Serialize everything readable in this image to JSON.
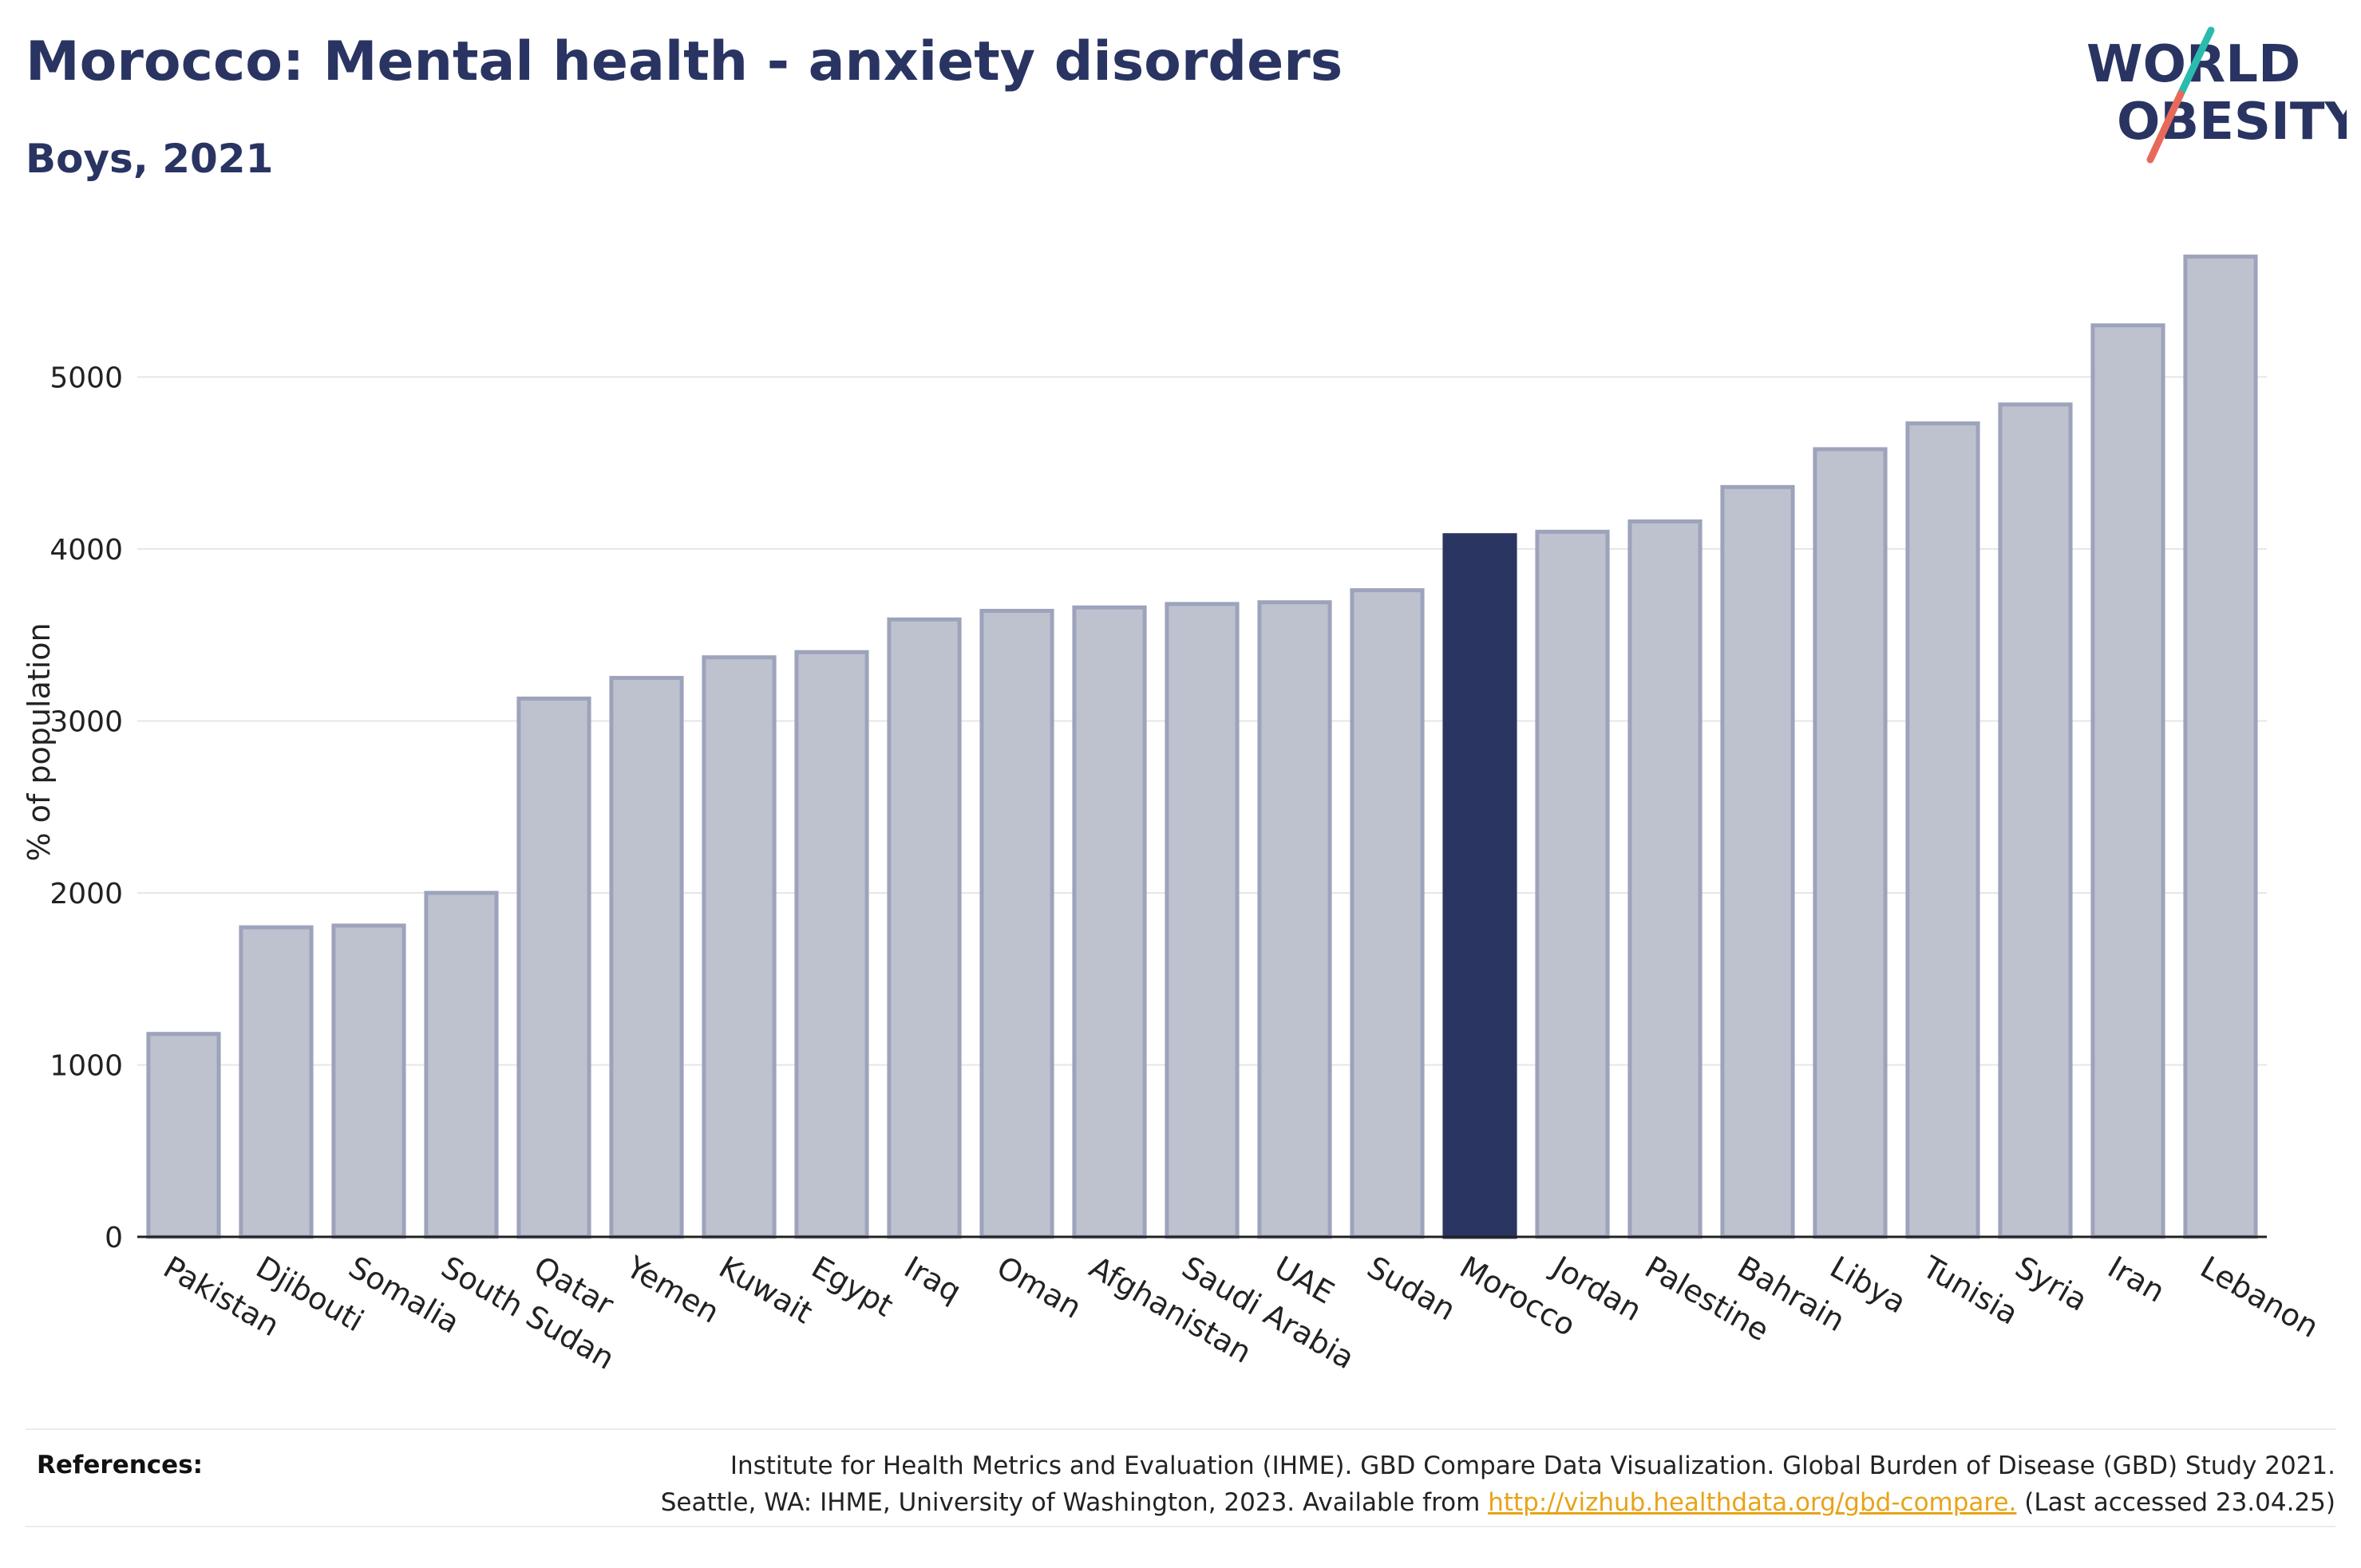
{
  "header": {
    "title": "Morocco: Mental health - anxiety disorders",
    "subtitle": "Boys, 2021",
    "logo_line1": "WORLD",
    "logo_line2": "OBESITY"
  },
  "colors": {
    "navy": "#293462",
    "bar_fill": "#bec2cf",
    "bar_stroke": "#9da3bb",
    "highlight": "#2a3561",
    "grid": "#e6e6e6",
    "logo_teal": "#2bbbad",
    "logo_coral": "#e8695a",
    "link": "#e8a317"
  },
  "chart_data": {
    "type": "bar",
    "title": "Morocco: Mental health - anxiety disorders",
    "subtitle": "Boys, 2021",
    "xlabel": "",
    "ylabel": "% of population",
    "ylim": [
      0,
      5800
    ],
    "yticks": [
      0,
      1000,
      2000,
      3000,
      4000,
      5000
    ],
    "grid": true,
    "highlight": "Morocco",
    "categories": [
      "Pakistan",
      "Djibouti",
      "Somalia",
      "South Sudan",
      "Qatar",
      "Yemen",
      "Kuwait",
      "Egypt",
      "Iraq",
      "Oman",
      "Afghanistan",
      "Saudi Arabia",
      "UAE",
      "Sudan",
      "Morocco",
      "Jordan",
      "Palestine",
      "Bahrain",
      "Libya",
      "Tunisia",
      "Syria",
      "Iran",
      "Lebanon"
    ],
    "values": [
      1180,
      1800,
      1810,
      2000,
      3130,
      3250,
      3370,
      3400,
      3590,
      3640,
      3660,
      3680,
      3690,
      3760,
      4080,
      4100,
      4160,
      4360,
      4580,
      4730,
      4840,
      5300,
      5700
    ]
  },
  "references": {
    "label": "References:",
    "line1": "Institute for Health Metrics and Evaluation (IHME). GBD Compare Data Visualization. Global Burden of Disease (GBD) Study 2021.",
    "line2_prefix": "Seattle, WA: IHME, University of Washington, 2023. Available from ",
    "link_text": "http://vizhub.healthdata.org/gbd-compare.",
    "line2_suffix": " (Last accessed 23.04.25)"
  }
}
